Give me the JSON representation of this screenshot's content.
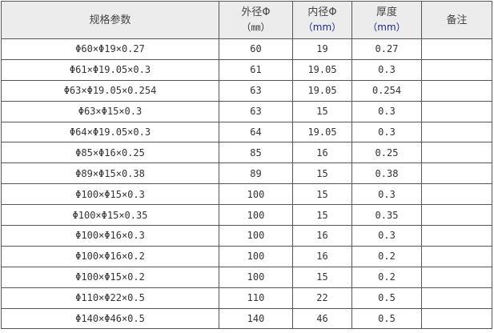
{
  "headers": [
    {
      "label": "规格参数",
      "unit": ""
    },
    {
      "label": "外径Φ",
      "unit": "（㎜）"
    },
    {
      "label": "内径Φ",
      "unit": "（mm）"
    },
    {
      "label": "厚度",
      "unit": "（mm）"
    },
    {
      "label": "备注",
      "unit": ""
    }
  ],
  "rows": [
    [
      "Φ60×Φ19×0.27",
      "60",
      "19",
      "0.27",
      ""
    ],
    [
      "Φ61×Φ19.05×0.3",
      "61",
      "19.05",
      "0.3",
      ""
    ],
    [
      "Φ63×Φ19.05×0.254",
      "63",
      "19.05",
      "0.254",
      ""
    ],
    [
      "Φ63×Φ15×0.3",
      "63",
      "15",
      "0.3",
      ""
    ],
    [
      "Φ64×Φ19.05×0.3",
      "64",
      "19.05",
      "0.3",
      ""
    ],
    [
      "Φ85×Φ16×0.25",
      "85",
      "16",
      "0.25",
      ""
    ],
    [
      "Φ89×Φ15×0.38",
      "89",
      "15",
      "0.38",
      ""
    ],
    [
      "Φ100×Φ15×0.3",
      "100",
      "15",
      "0.3",
      ""
    ],
    [
      "Φ100×Φ15×0.35",
      "100",
      "15",
      "0.35",
      ""
    ],
    [
      "Φ100×Φ16×0.3",
      "100",
      "16",
      "0.3",
      ""
    ],
    [
      "Φ100×Φ16×0.2",
      "100",
      "16",
      "0.2",
      ""
    ],
    [
      "Φ100×Φ15×0.2",
      "100",
      "15",
      "0.2",
      ""
    ],
    [
      "Φ110×Φ22×0.5",
      "110",
      "22",
      "0.5",
      ""
    ],
    [
      "Φ140×Φ46×0.5",
      "140",
      "46",
      "0.5",
      ""
    ]
  ]
}
